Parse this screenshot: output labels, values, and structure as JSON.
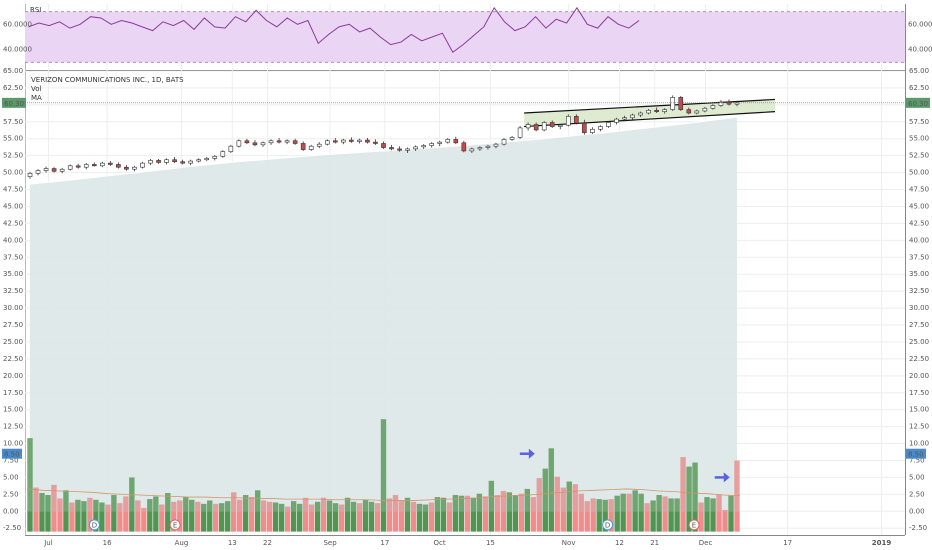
{
  "chart_data": [
    {
      "type": "line",
      "pane": "rsi",
      "title": "RSI",
      "y_ticks": [
        "60.0000",
        "40.0000"
      ],
      "y_tick_values": [
        60,
        40
      ],
      "ylim": [
        24,
        76
      ],
      "bands": [
        70,
        30
      ],
      "x": [
        1,
        4,
        7,
        10,
        13,
        16,
        19,
        22,
        25,
        28,
        31,
        34,
        37,
        40,
        43,
        46,
        49,
        52,
        55,
        58,
        61,
        64,
        67,
        70,
        73,
        76,
        79,
        82,
        85,
        88,
        91,
        94,
        97,
        100,
        103,
        106,
        109,
        112,
        115,
        118,
        121,
        124,
        127,
        130,
        133,
        136,
        139,
        142,
        145,
        148,
        151,
        154,
        157,
        160
      ],
      "series": [
        {
          "values": [
            58,
            61,
            59,
            62,
            57,
            60,
            66,
            65,
            60,
            63,
            61,
            58,
            55,
            62,
            59,
            63,
            56,
            65,
            58,
            57,
            66,
            62,
            71,
            63,
            58,
            65,
            60,
            63,
            45,
            52,
            58,
            60,
            54,
            57,
            50,
            44,
            46,
            52,
            47,
            50,
            53,
            38,
            44,
            51,
            58,
            73,
            62,
            55,
            58,
            66,
            57,
            64,
            61,
            73
          ],
          "color": "#8a3a9a"
        }
      ],
      "extra_values": [
        60,
        57,
        66,
        60,
        57,
        63
      ],
      "extra_x": [
        163,
        166,
        169,
        172,
        175,
        178
      ]
    },
    {
      "type": "candlestick",
      "pane": "price",
      "title": "VERIZON COMMUNICATIONS INC., 1D, BATS",
      "legend": [
        "Vol",
        "MA"
      ],
      "price_tag": "60.30",
      "volume_tag": "8.50",
      "y_ticks": [
        "65.00",
        "62.50",
        "60.00",
        "57.50",
        "55.00",
        "52.50",
        "50.00",
        "47.50",
        "45.00",
        "42.50",
        "40.00",
        "37.50",
        "35.00",
        "32.50",
        "30.00",
        "27.50",
        "25.00",
        "22.50",
        "20.00",
        "17.50",
        "15.00",
        "12.50",
        "10.00",
        "7.50",
        "5.00",
        "2.50",
        "0.00",
        "-2.50"
      ],
      "ylim": [
        -3.5,
        65
      ],
      "x_ticks": [
        "Jul",
        "16",
        "Aug",
        "13",
        "22",
        "Sep",
        "17",
        "Oct",
        "15",
        "Nov",
        "12",
        "21",
        "Dec",
        "17",
        "2019"
      ],
      "x_tick_days": [
        6,
        21,
        40,
        53,
        62,
        78,
        92,
        106,
        119,
        139,
        152,
        161,
        174,
        195,
        219
      ],
      "xlim": [
        0,
        225
      ],
      "date_range": [
        "2018-06-26",
        "2018-11-30"
      ],
      "candles": [
        [
          49.4,
          50.1,
          49.1,
          49.9
        ],
        [
          49.9,
          50.5,
          49.6,
          50.3
        ],
        [
          50.3,
          50.9,
          50.0,
          50.6
        ],
        [
          50.6,
          50.8,
          50.0,
          50.2
        ],
        [
          50.2,
          50.7,
          49.9,
          50.5
        ],
        [
          50.5,
          51.2,
          50.3,
          51.0
        ],
        [
          51.0,
          51.3,
          50.6,
          50.8
        ],
        [
          50.8,
          51.4,
          50.5,
          51.2
        ],
        [
          51.2,
          51.5,
          50.9,
          51.0
        ],
        [
          51.0,
          51.6,
          50.8,
          51.4
        ],
        [
          51.4,
          51.7,
          51.0,
          51.2
        ],
        [
          51.2,
          51.5,
          50.6,
          50.8
        ],
        [
          50.8,
          51.1,
          50.3,
          50.5
        ],
        [
          50.5,
          51.0,
          50.2,
          50.8
        ],
        [
          50.8,
          51.6,
          50.6,
          51.4
        ],
        [
          51.4,
          52.0,
          51.1,
          51.8
        ],
        [
          51.8,
          52.0,
          51.3,
          51.5
        ],
        [
          51.5,
          52.1,
          51.2,
          51.9
        ],
        [
          51.9,
          52.3,
          51.4,
          51.6
        ],
        [
          51.6,
          51.9,
          51.2,
          51.4
        ],
        [
          51.4,
          51.9,
          51.1,
          51.7
        ],
        [
          51.7,
          52.1,
          51.5,
          51.9
        ],
        [
          51.9,
          52.3,
          51.7,
          52.1
        ],
        [
          52.1,
          52.6,
          51.8,
          52.4
        ],
        [
          52.4,
          53.3,
          52.2,
          53.1
        ],
        [
          53.1,
          54.1,
          52.9,
          53.9
        ],
        [
          53.9,
          54.9,
          53.7,
          54.7
        ],
        [
          54.7,
          55.0,
          54.2,
          54.4
        ],
        [
          54.4,
          54.8,
          53.9,
          54.1
        ],
        [
          54.1,
          54.6,
          53.8,
          54.4
        ],
        [
          54.4,
          54.9,
          54.1,
          54.7
        ],
        [
          54.7,
          55.1,
          54.3,
          54.5
        ],
        [
          54.5,
          54.9,
          54.2,
          54.7
        ],
        [
          54.7,
          55.0,
          54.1,
          54.3
        ],
        [
          54.3,
          54.6,
          53.2,
          53.4
        ],
        [
          53.4,
          54.1,
          53.2,
          53.9
        ],
        [
          53.9,
          54.5,
          53.6,
          54.2
        ],
        [
          54.2,
          54.9,
          54.0,
          54.7
        ],
        [
          54.7,
          55.1,
          54.3,
          54.5
        ],
        [
          54.5,
          55.0,
          54.2,
          54.8
        ],
        [
          54.8,
          55.2,
          54.4,
          54.6
        ],
        [
          54.6,
          55.0,
          54.3,
          54.8
        ],
        [
          54.8,
          55.1,
          54.3,
          54.5
        ],
        [
          54.5,
          54.9,
          54.1,
          54.3
        ],
        [
          54.3,
          54.6,
          53.5,
          53.7
        ],
        [
          53.7,
          54.1,
          53.3,
          53.5
        ],
        [
          53.5,
          53.9,
          53.1,
          53.3
        ],
        [
          53.3,
          53.7,
          52.9,
          53.5
        ],
        [
          53.5,
          54.0,
          53.2,
          53.8
        ],
        [
          53.8,
          54.2,
          53.5,
          54.0
        ],
        [
          54.0,
          54.5,
          53.7,
          54.3
        ],
        [
          54.3,
          54.7,
          53.9,
          54.5
        ],
        [
          54.5,
          55.1,
          54.3,
          54.9
        ],
        [
          54.9,
          55.3,
          54.2,
          54.4
        ],
        [
          54.4,
          54.7,
          53.0,
          53.2
        ],
        [
          53.2,
          53.7,
          52.9,
          53.5
        ],
        [
          53.5,
          53.9,
          53.2,
          53.7
        ],
        [
          53.7,
          54.1,
          53.4,
          53.9
        ],
        [
          53.9,
          54.4,
          53.6,
          54.2
        ],
        [
          54.2,
          55.1,
          54.0,
          54.9
        ],
        [
          54.9,
          55.4,
          54.7,
          55.2
        ],
        [
          55.2,
          56.9,
          55.0,
          56.6
        ],
        [
          56.6,
          57.4,
          56.2,
          57.1
        ],
        [
          57.1,
          57.4,
          56.1,
          56.3
        ],
        [
          56.3,
          57.6,
          56.1,
          57.4
        ],
        [
          57.4,
          57.7,
          56.6,
          56.8
        ],
        [
          56.8,
          57.2,
          56.4,
          57.0
        ],
        [
          57.0,
          58.6,
          56.8,
          58.3
        ],
        [
          58.3,
          58.6,
          57.1,
          57.3
        ],
        [
          57.3,
          57.8,
          55.6,
          55.9
        ],
        [
          55.9,
          56.7,
          55.7,
          56.4
        ],
        [
          56.4,
          57.0,
          56.1,
          56.8
        ],
        [
          56.8,
          57.6,
          56.6,
          57.4
        ],
        [
          57.4,
          58.1,
          57.1,
          57.9
        ],
        [
          57.9,
          58.4,
          57.6,
          58.1
        ],
        [
          58.1,
          58.7,
          57.8,
          58.5
        ],
        [
          58.5,
          59.0,
          58.2,
          58.8
        ],
        [
          58.8,
          59.4,
          58.6,
          59.2
        ],
        [
          59.2,
          59.6,
          58.8,
          59.0
        ],
        [
          59.0,
          59.5,
          58.7,
          59.3
        ],
        [
          59.3,
          61.4,
          59.1,
          61.1
        ],
        [
          61.1,
          61.3,
          59.1,
          59.3
        ],
        [
          59.3,
          59.6,
          58.6,
          58.8
        ],
        [
          58.8,
          59.3,
          58.6,
          59.1
        ],
        [
          59.1,
          59.7,
          58.9,
          59.5
        ],
        [
          59.5,
          60.1,
          59.3,
          59.9
        ],
        [
          59.9,
          60.7,
          59.7,
          60.4
        ],
        [
          60.4,
          60.8,
          59.9,
          60.1
        ],
        [
          60.1,
          60.6,
          59.8,
          60.3
        ]
      ],
      "area_top": [
        48.3,
        48.9,
        49.6,
        50.3,
        51.0,
        51.6,
        52.1,
        52.6,
        53.0,
        53.4,
        53.8,
        54.3,
        54.8,
        55.4,
        56.0,
        56.7,
        57.4,
        58.2
      ],
      "channel": {
        "lower": [
          56.8,
          59.0
        ],
        "upper": [
          58.8,
          60.8
        ],
        "start_candle": 62,
        "end_candle": 88
      }
    },
    {
      "type": "bar",
      "pane": "volume",
      "series": [
        {
          "name": "Vol",
          "values": [
            10.8,
            3.5,
            2.7,
            2.4,
            3.9,
            1.9,
            3.1,
            1.3,
            1.7,
            1.5,
            2.0,
            1.7,
            1.3,
            1.0,
            2.4,
            1.2,
            2.2,
            5.0,
            1.6,
            0.5,
            1.8,
            2.2,
            1.0,
            2.7,
            1.4,
            1.6,
            2.1,
            1.7,
            1.4,
            1.1,
            1.6,
            1.1,
            1.2,
            1.5,
            2.8,
            1.7,
            2.4,
            2.1,
            3.1,
            1.6,
            1.4,
            1.3,
            1.1,
            0.7,
            1.5,
            1.1,
            2.0,
            1.0,
            1.4,
            2.0,
            1.6,
            1.2,
            1.0,
            2.0,
            1.4,
            1.2,
            1.7,
            1.4,
            1.2,
            13.6,
            1.9,
            2.4,
            1.6,
            2.0,
            1.4,
            1.1,
            1.0,
            1.3,
            2.1,
            2.0,
            1.3,
            2.4,
            2.3,
            2.3,
            2.0,
            2.6,
            2.2,
            4.5,
            2.4,
            3.0,
            2.8,
            2.4,
            2.6,
            3.3,
            2.1,
            4.9,
            6.3,
            9.3,
            5.1,
            3.5,
            4.4,
            4.0,
            2.6,
            1.5,
            1.9,
            1.8,
            1.7,
            1.8,
            2.3,
            2.6,
            2.6,
            3.1,
            2.6,
            1.2,
            1.6,
            2.4,
            2.2,
            1.9,
            1.9,
            8.0,
            6.6,
            7.2,
            1.3,
            2.1,
            1.9,
            2.5,
            0.2,
            2.3,
            7.5
          ],
          "colors_up_down": [
            "#5a9a5a",
            "#e88f8f"
          ]
        },
        {
          "name": "MA",
          "values": [
            3.3,
            3.1,
            3.0,
            2.9,
            2.8,
            2.6,
            2.5,
            2.4,
            2.3,
            2.2,
            2.1,
            2.1,
            2.0,
            2.0,
            1.9,
            1.9,
            1.8,
            1.8,
            1.8,
            1.7,
            1.7,
            1.7,
            1.6,
            1.6,
            1.6,
            1.7,
            1.8,
            1.9,
            2.0,
            2.2,
            2.3,
            2.4,
            2.6,
            2.8,
            3.0,
            3.1,
            3.2,
            3.3,
            3.2,
            3.0,
            2.9,
            2.7,
            2.6,
            2.4,
            2.3
          ],
          "color": "#d4956a"
        }
      ],
      "events": [
        "D",
        "E",
        "D",
        "E"
      ],
      "event_positions": [
        11,
        25,
        99,
        114
      ],
      "event_colors": [
        "#3aa0d8",
        "#e06060",
        "#3aa0d8",
        "#e06060"
      ],
      "arrows": [
        {
          "bar": 106,
          "value": 8.5
        },
        {
          "bar": 147,
          "value": 5.0
        }
      ]
    }
  ],
  "colors": {
    "rsi_band_fill": "#ead5f5",
    "rsi_line": "#8a3a9a",
    "area_fill": "#dbe7e7",
    "channel_fill": "#d8e8c8",
    "up_candle": "#ffffff",
    "down_candle": "#c74a4a",
    "price_tag_bg": "#5a9a6a",
    "volume_tag_bg": "#4a8ac8",
    "arrow": "#5a60e0"
  }
}
